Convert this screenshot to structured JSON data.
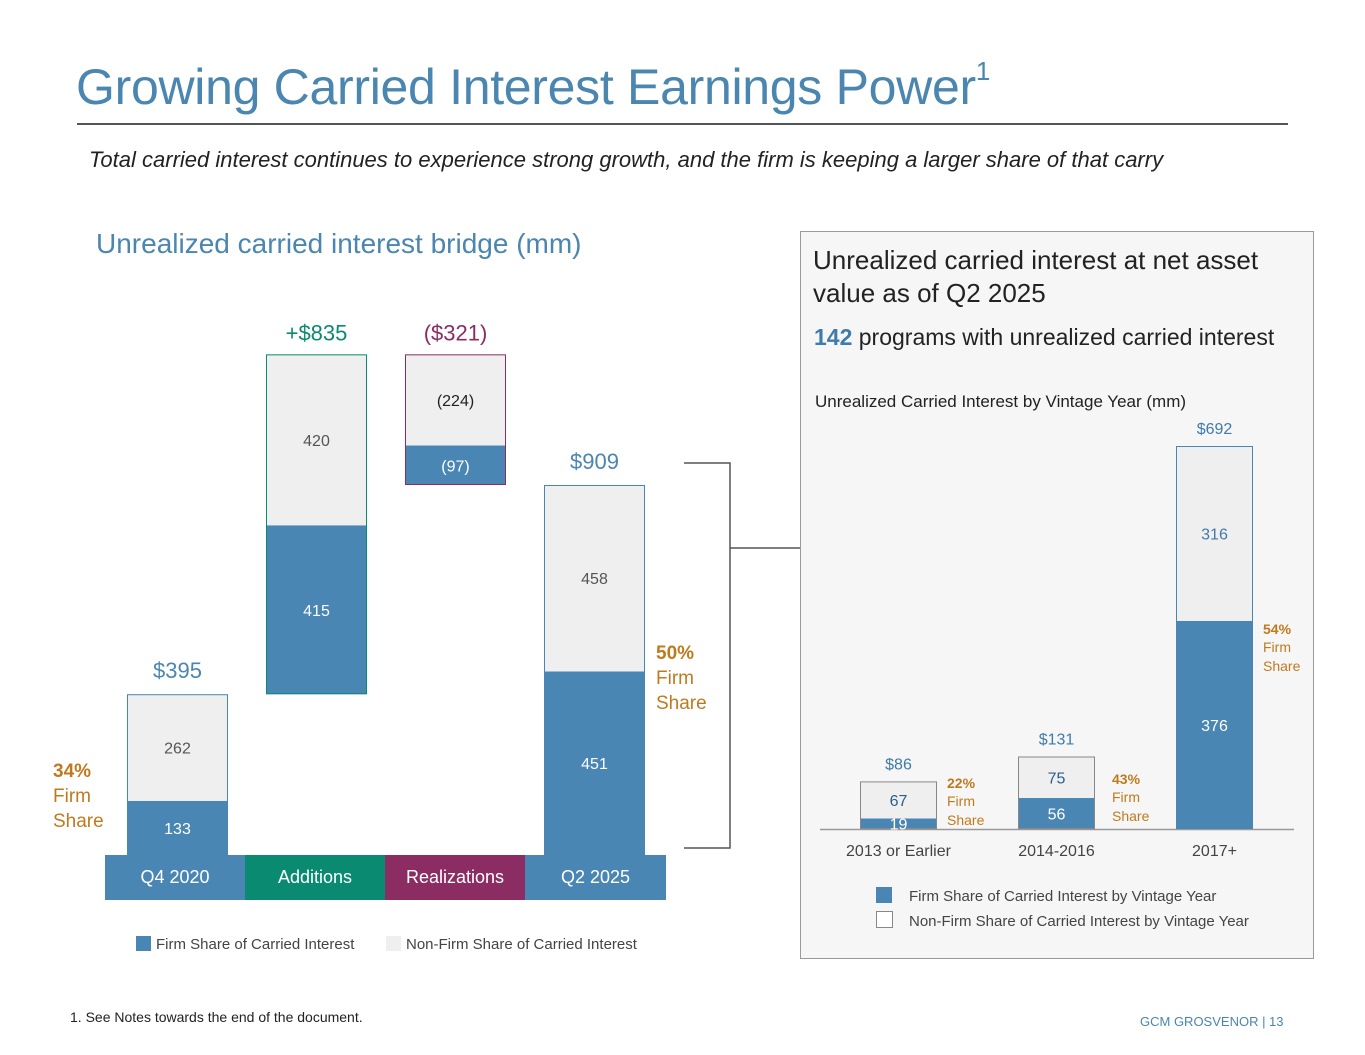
{
  "header": {
    "title": "Growing Carried Interest Earnings Power",
    "title_superscript": "1",
    "subtitle": "Total carried interest continues to experience strong growth, and the firm is keeping a larger share of that carry"
  },
  "left_chart": {
    "title": "Unrealized carried interest bridge (mm)"
  },
  "right_panel": {
    "heading": "Unrealized carried interest at net asset value as of Q2 2025",
    "programs_count": "142",
    "programs_text": " programs with unrealized carried interest",
    "chart_title": "Unrealized Carried Interest by Vintage Year (mm)"
  },
  "footer": {
    "footnote": "1. See Notes towards the end of the document.",
    "brand": "GCM GROSVENOR | 13"
  },
  "colors": {
    "firm": "#4a86b4",
    "non_firm": "#efefef",
    "additions": "#0b8a72",
    "realizations": "#8b2d63",
    "firm_share_text": "#c07a1e",
    "title_blue": "#4a86b0"
  },
  "chart_data": [
    {
      "type": "bar",
      "subtype": "waterfall",
      "categories": [
        "Q4 2020",
        "Additions",
        "Realizations",
        "Q2 2025"
      ],
      "category_colors": [
        "#4a86b4",
        "#0b8a72",
        "#8b2d63",
        "#4a86b4"
      ],
      "series": [
        {
          "name": "Firm Share of Carried Interest",
          "values": [
            133,
            415,
            97,
            451
          ],
          "labels": [
            "133",
            "415",
            "(97)",
            "451"
          ]
        },
        {
          "name": "Non-Firm Share of Carried Interest",
          "values": [
            262,
            420,
            224,
            458
          ],
          "labels": [
            "262",
            "420",
            "(224)",
            "458"
          ]
        }
      ],
      "totals": [
        "$395",
        "+$835",
        "($321)",
        "$909"
      ],
      "firm_share_labels": [
        {
          "category": "Q4 2020",
          "pct": "34%",
          "line1": "Firm",
          "line2": "Share"
        },
        {
          "category": "Q2 2025",
          "pct": "50%",
          "line1": "Firm",
          "line2": "Share"
        }
      ],
      "legend": [
        "Firm Share of Carried Interest",
        "Non-Firm Share of Carried Interest"
      ],
      "legend_position": "bottom"
    },
    {
      "type": "bar",
      "subtype": "stacked",
      "title": "Unrealized Carried Interest by Vintage Year (mm)",
      "categories": [
        "2013 or Earlier",
        "2014-2016",
        "2017+"
      ],
      "series": [
        {
          "name": "Firm Share of Carried Interest by Vintage Year",
          "values": [
            19,
            56,
            376
          ]
        },
        {
          "name": "Non-Firm Share of Carried Interest by Vintage Year",
          "values": [
            67,
            75,
            316
          ]
        }
      ],
      "totals": [
        "$86",
        "$131",
        "$692"
      ],
      "firm_share_labels": [
        {
          "pct": "22%",
          "line1": "Firm",
          "line2": "Share"
        },
        {
          "pct": "43%",
          "line1": "Firm",
          "line2": "Share"
        },
        {
          "pct": "54%",
          "line1": "Firm",
          "line2": "Share"
        }
      ],
      "legend": [
        "Firm Share of Carried Interest by Vintage Year",
        "Non-Firm Share of Carried Interest by Vintage Year"
      ],
      "legend_position": "bottom"
    }
  ]
}
